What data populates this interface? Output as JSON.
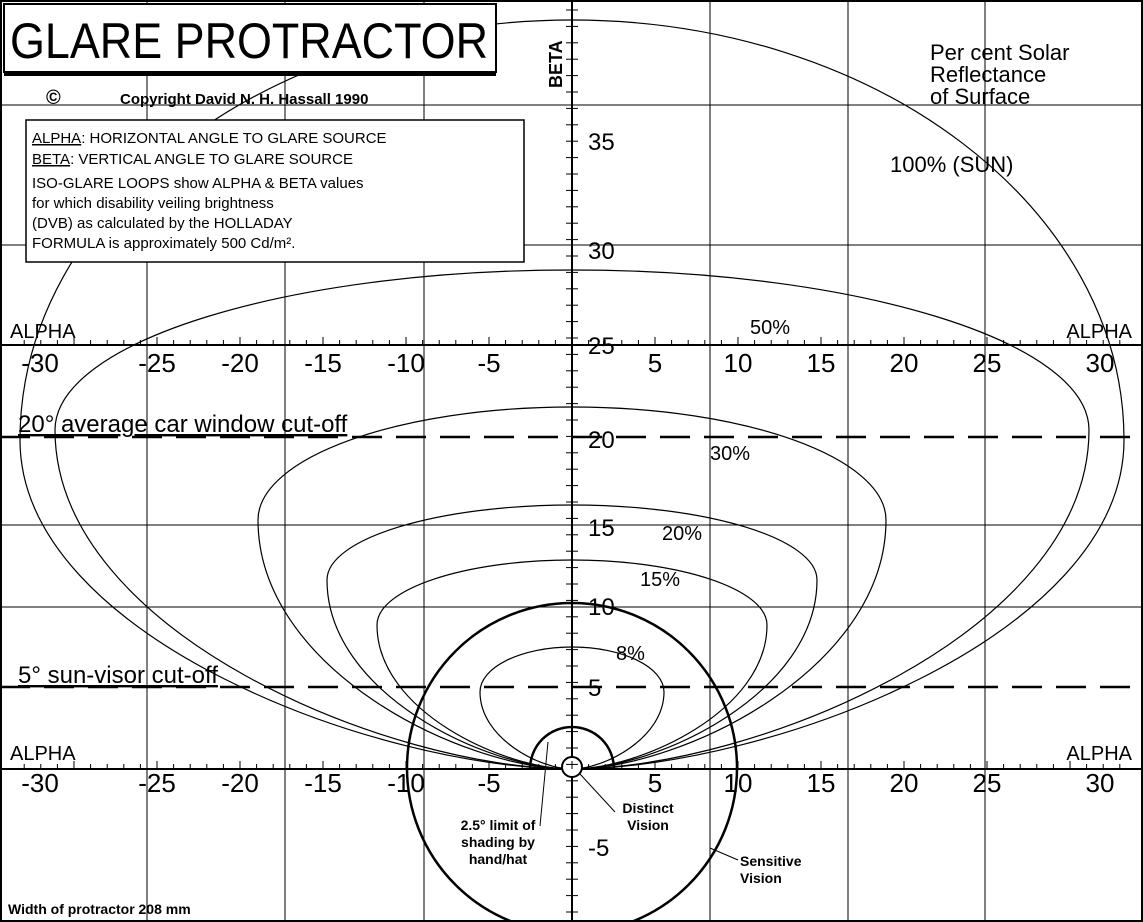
{
  "title": "GLARE PROTRACTOR",
  "copyright_symbol": "©",
  "copyright": "Copyright David N. H. Hassall 1990",
  "beta_axis_label": "BETA",
  "legend_box": {
    "alpha_term": "ALPHA",
    "alpha_def": ": HORIZONTAL ANGLE TO GLARE SOURCE",
    "beta_term": "BETA",
    "beta_def": ": VERTICAL ANGLE TO GLARE SOURCE",
    "lines": [
      "ISO-GLARE LOOPS show ALPHA & BETA values",
      "for which disability veiling brightness",
      "(DVB) as calculated by the HOLLADAY",
      "FORMULA is approximately 500 Cd/m²."
    ]
  },
  "reflectance_heading": [
    "Per cent Solar",
    "Reflectance",
    "of Surface"
  ],
  "loop_labels": [
    "100% (SUN)",
    "50%",
    "30%",
    "20%",
    "15%",
    "8%"
  ],
  "alpha_labels": [
    "ALPHA",
    "ALPHA",
    "ALPHA",
    "ALPHA"
  ],
  "alpha_ticks": [
    -30,
    -25,
    -20,
    -15,
    -10,
    -5,
    5,
    10,
    15,
    20,
    25,
    30
  ],
  "beta_ticks": [
    35,
    30,
    25,
    20,
    15,
    10,
    5,
    -5
  ],
  "car_window": "20° average car window cut-off",
  "sun_visor": "5° sun-visor cut-off",
  "hand_hat": [
    "2.5° limit of",
    "shading by",
    "hand/hat"
  ],
  "distinct_vision": [
    "Distinct",
    "Vision"
  ],
  "sensitive_vision": [
    "Sensitive",
    "Vision"
  ],
  "width_note": "Width of protractor 208 mm"
}
